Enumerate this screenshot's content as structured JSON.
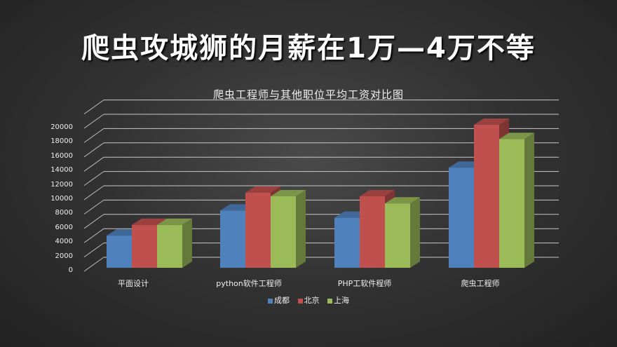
{
  "headline": "爬虫攻城狮的月薪在1万—4万不等",
  "chart_data": {
    "type": "bar",
    "style": "3d-clustered-column",
    "title": "爬虫工程师与其他职位平均工资对比图",
    "xlabel": "",
    "ylabel": "",
    "ylim": [
      0,
      20000
    ],
    "yticks": [
      0,
      2000,
      4000,
      6000,
      8000,
      10000,
      12000,
      14000,
      16000,
      18000,
      20000
    ],
    "grid": true,
    "legend_position": "bottom",
    "categories": [
      "平面设计",
      "python软件工程师",
      "PHP工软件程师",
      "爬虫工程师"
    ],
    "series": [
      {
        "name": "成都",
        "color": "#4f81bd",
        "values": [
          4500,
          8000,
          7000,
          14000
        ]
      },
      {
        "name": "北京",
        "color": "#c0504d",
        "values": [
          6000,
          10500,
          10000,
          20000
        ]
      },
      {
        "name": "上海",
        "color": "#9bbb59",
        "values": [
          6000,
          10000,
          9000,
          18000
        ]
      }
    ]
  },
  "legend": {
    "items": [
      {
        "label": "成都",
        "color": "#4f81bd"
      },
      {
        "label": "北京",
        "color": "#c0504d"
      },
      {
        "label": "上海",
        "color": "#9bbb59"
      }
    ]
  }
}
